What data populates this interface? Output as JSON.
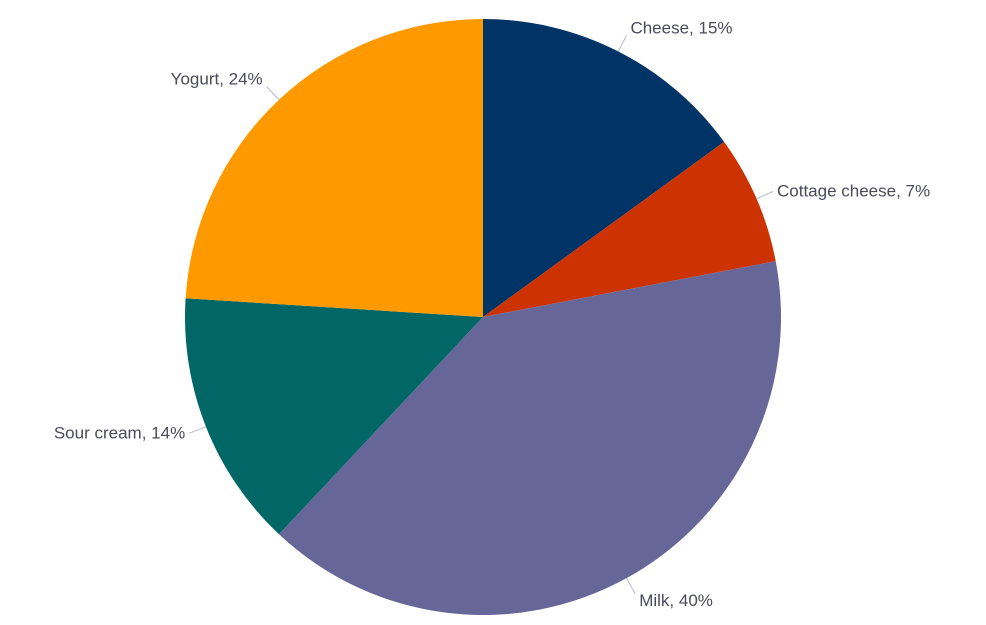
{
  "chart_data": {
    "type": "pie",
    "title": "",
    "legend": "none",
    "slices": [
      {
        "label": "Cheese, 15%",
        "name": "Cheese",
        "value": 15,
        "color": "#003366"
      },
      {
        "label": "Cottage cheese, 7%",
        "name": "Cottage cheese",
        "value": 7,
        "color": "#CC3300"
      },
      {
        "label": "Milk, 40%",
        "name": "Milk",
        "value": 40,
        "color": "#666699"
      },
      {
        "label": "Sour cream, 14%",
        "name": "Sour cream",
        "value": 14,
        "color": "#006666"
      },
      {
        "label": "Yogurt, 24%",
        "name": "Yogurt",
        "value": 24,
        "color": "#FF9900"
      }
    ]
  }
}
